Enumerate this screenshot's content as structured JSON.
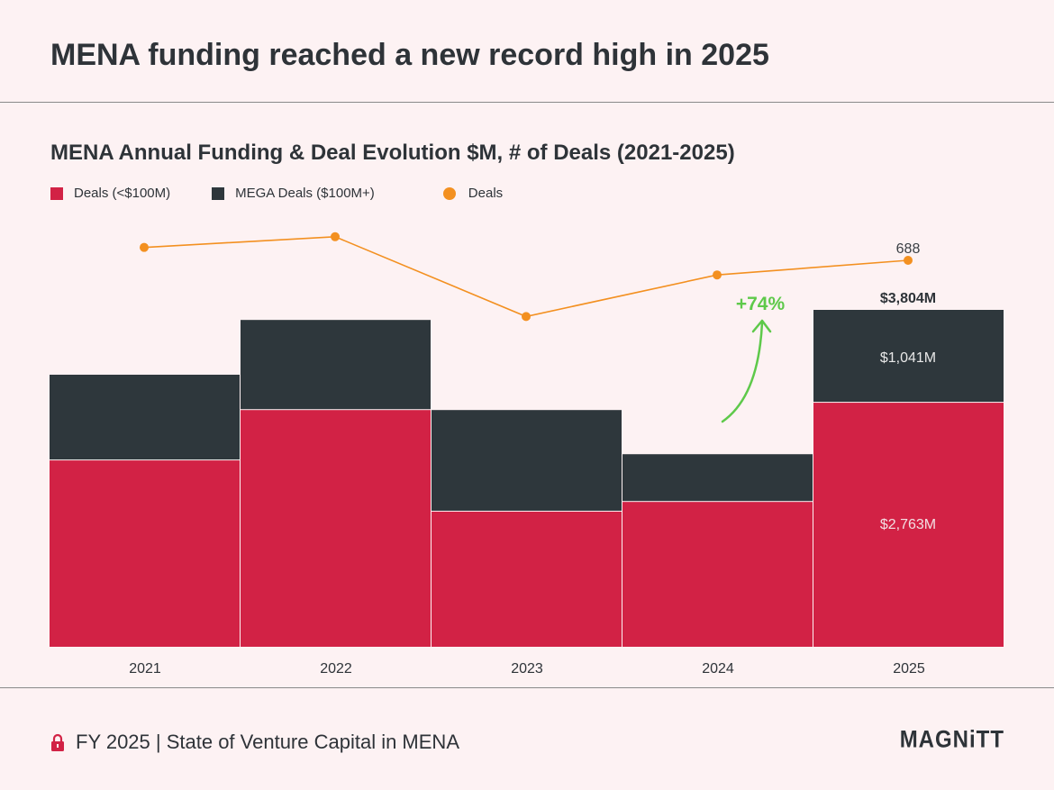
{
  "header": {
    "title": "MENA funding reached a new record high in 2025"
  },
  "chart_data": {
    "type": "bar",
    "title": "MENA Annual Funding & Deal Evolution $M, # of Deals (2021-2025)",
    "categories": [
      "2021",
      "2022",
      "2023",
      "2024",
      "2025"
    ],
    "series": [
      {
        "name": "Deals (<$100M)",
        "kind": "stacked-bar",
        "color": "#d22245",
        "values": [
          2110,
          2680,
          1530,
          1640,
          2763
        ]
      },
      {
        "name": "MEGA Deals ($100M+)",
        "kind": "stacked-bar",
        "color": "#2e373c",
        "values": [
          960,
          1010,
          1140,
          530,
          1041
        ]
      },
      {
        "name": "Deals",
        "kind": "line",
        "color": "#f39020",
        "values": [
          711,
          730,
          588,
          662,
          688
        ]
      }
    ],
    "data_labels": {
      "total_2025": "$3,804M",
      "mega_2025": "$1,041M",
      "deals_2025": "$2,763M",
      "deal_count_2025": "688"
    },
    "annotation": "+74%",
    "legend_position": "top-left",
    "grid": false
  },
  "footer": {
    "text": "FY 2025 | State of Venture Capital in MENA",
    "logo": "MAGNiTT"
  },
  "colors": {
    "accent": "#d22245",
    "dark": "#2e373c",
    "line": "#f39020",
    "green": "#5ec94a"
  }
}
